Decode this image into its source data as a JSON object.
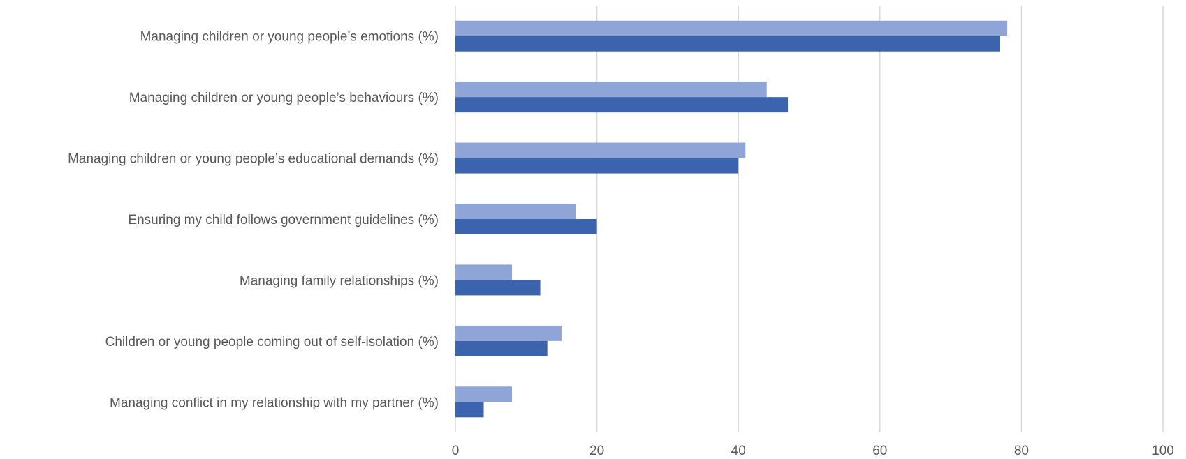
{
  "chart_data": {
    "type": "bar",
    "orientation": "horizontal",
    "title": "",
    "xlabel": "",
    "ylabel": "",
    "xlim": [
      0,
      100
    ],
    "ticks": [
      "0",
      "20",
      "40",
      "60",
      "80",
      "100"
    ],
    "grid": true,
    "legend": "none",
    "categories": [
      "Managing children or young people’s emotions (%)",
      "Managing children or young people’s behaviours (%)",
      "Managing children or young people’s educational demands (%)",
      "Ensuring my child follows government guidelines (%)",
      "Managing family relationships (%)",
      "Children or young people coming out of self-isolation (%)",
      "Managing conflict in my relationship with my partner (%)"
    ],
    "series": [
      {
        "color": "#8fa5d8",
        "values": [
          78,
          44,
          41,
          17,
          8,
          15,
          8
        ]
      },
      {
        "color": "#3c64ae",
        "values": [
          77,
          47,
          40,
          20,
          12,
          13,
          4
        ]
      }
    ]
  }
}
